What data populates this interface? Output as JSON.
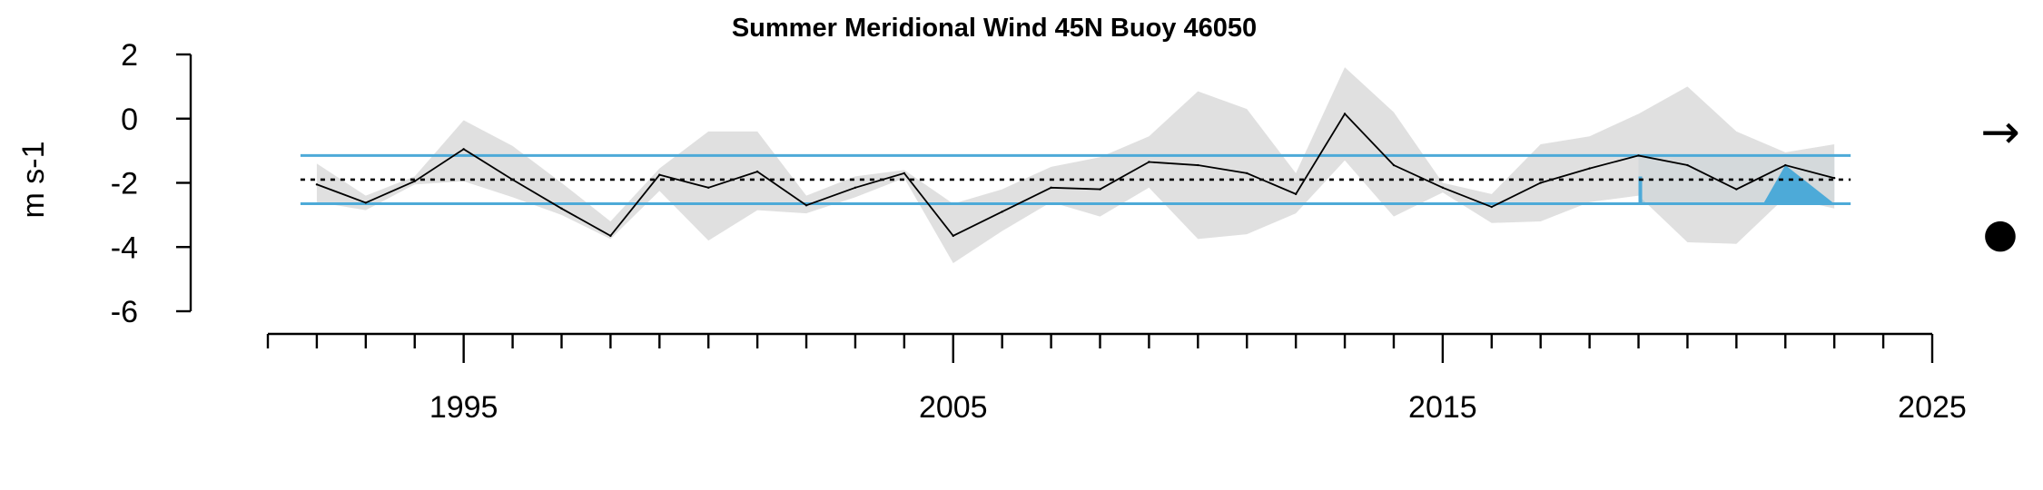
{
  "chart_data": {
    "type": "line",
    "title": "Summer Meridional Wind 45N Buoy 46050",
    "ylabel": "m s-1",
    "xlabel": "",
    "xlim": [
      1991,
      2025
    ],
    "ylim": [
      -6,
      2
    ],
    "x_ticks_major": [
      1995,
      2005,
      2015,
      2025
    ],
    "x_ticks_minor_range": [
      1991,
      2025
    ],
    "y_ticks": [
      2,
      0,
      -2,
      -4,
      -6
    ],
    "mean": -1.9,
    "sd_upper": -1.15,
    "sd_lower": -2.65,
    "recent_period": [
      2019,
      2023
    ],
    "series": [
      {
        "x": [
          1992,
          1993,
          1994,
          1995,
          1996,
          1997,
          1998,
          1999,
          2000,
          2001,
          2002,
          2003,
          2004,
          2005,
          2006,
          2007,
          2008,
          2009,
          2010,
          2011,
          2012,
          2013,
          2014,
          2015,
          2016,
          2017,
          2018,
          2019,
          2020,
          2021,
          2022,
          2023
        ],
        "values": [
          -2.05,
          -2.62,
          -1.95,
          -0.95,
          -1.9,
          -2.8,
          -3.65,
          -1.75,
          -2.15,
          -1.65,
          -2.7,
          -2.15,
          -1.7,
          -3.65,
          -2.9,
          -2.15,
          -2.2,
          -1.35,
          -1.45,
          -1.7,
          -2.35,
          0.15,
          -1.45,
          -2.15,
          -2.75,
          -2.0,
          -1.55,
          -1.15,
          -1.45,
          -2.2,
          -1.45,
          -1.85
        ],
        "upper": [
          -1.4,
          -2.4,
          -1.8,
          -0.05,
          -0.85,
          -2.0,
          -3.2,
          -1.55,
          -0.4,
          -0.4,
          -2.4,
          -1.8,
          -1.6,
          -2.65,
          -2.2,
          -1.5,
          -1.2,
          -0.55,
          0.85,
          0.3,
          -1.7,
          1.6,
          0.2,
          -2.0,
          -2.35,
          -0.8,
          -0.55,
          0.15,
          1.0,
          -0.4,
          -1.05,
          -0.8
        ],
        "lower": [
          -2.6,
          -2.85,
          -2.05,
          -1.95,
          -2.45,
          -3.0,
          -3.75,
          -2.25,
          -3.8,
          -2.85,
          -2.95,
          -2.45,
          -1.85,
          -4.5,
          -3.5,
          -2.6,
          -3.05,
          -2.15,
          -3.75,
          -3.6,
          -2.95,
          -1.3,
          -3.05,
          -2.3,
          -3.25,
          -3.2,
          -2.6,
          -2.4,
          -3.85,
          -3.9,
          -2.45,
          -2.8
        ]
      }
    ],
    "colors": {
      "line": "#000000",
      "envelope": "#dadada",
      "sd_lines": "#4daad8",
      "mean_line": "#000000",
      "recent_shade": "#aecdd9",
      "highlight": "#4daad8"
    },
    "trend_symbol": "→",
    "mean_symbol": "●"
  }
}
